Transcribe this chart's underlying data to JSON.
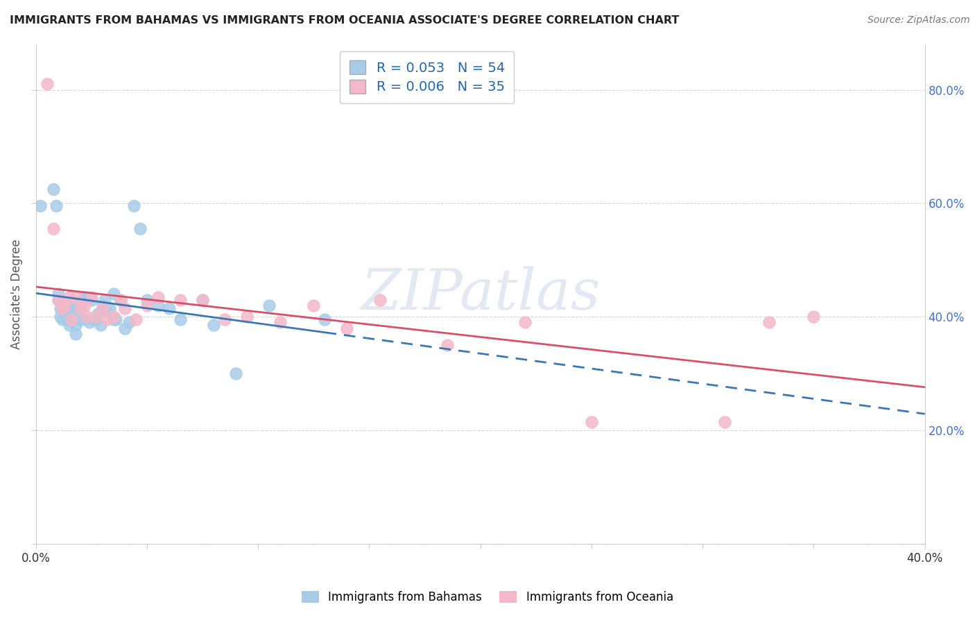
{
  "title": "IMMIGRANTS FROM BAHAMAS VS IMMIGRANTS FROM OCEANIA ASSOCIATE'S DEGREE CORRELATION CHART",
  "source": "Source: ZipAtlas.com",
  "ylabel": "Associate's Degree",
  "blue_R": 0.053,
  "blue_N": 54,
  "pink_R": 0.006,
  "pink_N": 35,
  "blue_color": "#a8cce8",
  "pink_color": "#f4b8c8",
  "blue_line_color": "#3a78b5",
  "pink_line_color": "#d94f6a",
  "legend_label_blue": "Immigrants from Bahamas",
  "legend_label_pink": "Immigrants from Oceania",
  "watermark": "ZIPatlas",
  "xlim": [
    0.0,
    0.4
  ],
  "ylim": [
    0.0,
    0.88
  ],
  "blue_x": [
    0.002,
    0.008,
    0.009,
    0.01,
    0.01,
    0.011,
    0.011,
    0.012,
    0.013,
    0.013,
    0.014,
    0.014,
    0.015,
    0.015,
    0.016,
    0.016,
    0.017,
    0.018,
    0.018,
    0.019,
    0.02,
    0.02,
    0.021,
    0.022,
    0.022,
    0.023,
    0.024,
    0.025,
    0.026,
    0.027,
    0.028,
    0.029,
    0.03,
    0.03,
    0.031,
    0.032,
    0.033,
    0.035,
    0.035,
    0.036,
    0.038,
    0.04,
    0.042,
    0.044,
    0.047,
    0.05,
    0.055,
    0.06,
    0.065,
    0.075,
    0.08,
    0.09,
    0.105,
    0.13
  ],
  "blue_y": [
    0.595,
    0.625,
    0.595,
    0.44,
    0.43,
    0.415,
    0.4,
    0.395,
    0.42,
    0.41,
    0.415,
    0.395,
    0.415,
    0.385,
    0.425,
    0.4,
    0.42,
    0.385,
    0.37,
    0.415,
    0.42,
    0.395,
    0.43,
    0.435,
    0.395,
    0.435,
    0.39,
    0.43,
    0.395,
    0.395,
    0.405,
    0.385,
    0.42,
    0.415,
    0.43,
    0.41,
    0.415,
    0.44,
    0.395,
    0.395,
    0.43,
    0.38,
    0.39,
    0.595,
    0.555,
    0.43,
    0.42,
    0.415,
    0.395,
    0.43,
    0.385,
    0.3,
    0.42,
    0.395
  ],
  "pink_x": [
    0.005,
    0.008,
    0.01,
    0.012,
    0.013,
    0.015,
    0.016,
    0.018,
    0.02,
    0.022,
    0.023,
    0.025,
    0.027,
    0.03,
    0.032,
    0.035,
    0.038,
    0.04,
    0.045,
    0.05,
    0.055,
    0.065,
    0.075,
    0.085,
    0.095,
    0.11,
    0.125,
    0.14,
    0.155,
    0.185,
    0.22,
    0.25,
    0.31,
    0.33,
    0.35
  ],
  "pink_y": [
    0.81,
    0.555,
    0.43,
    0.415,
    0.42,
    0.435,
    0.395,
    0.435,
    0.415,
    0.42,
    0.4,
    0.435,
    0.4,
    0.415,
    0.395,
    0.4,
    0.43,
    0.415,
    0.395,
    0.42,
    0.435,
    0.43,
    0.43,
    0.395,
    0.4,
    0.39,
    0.42,
    0.38,
    0.43,
    0.35,
    0.39,
    0.215,
    0.215,
    0.39,
    0.4
  ]
}
